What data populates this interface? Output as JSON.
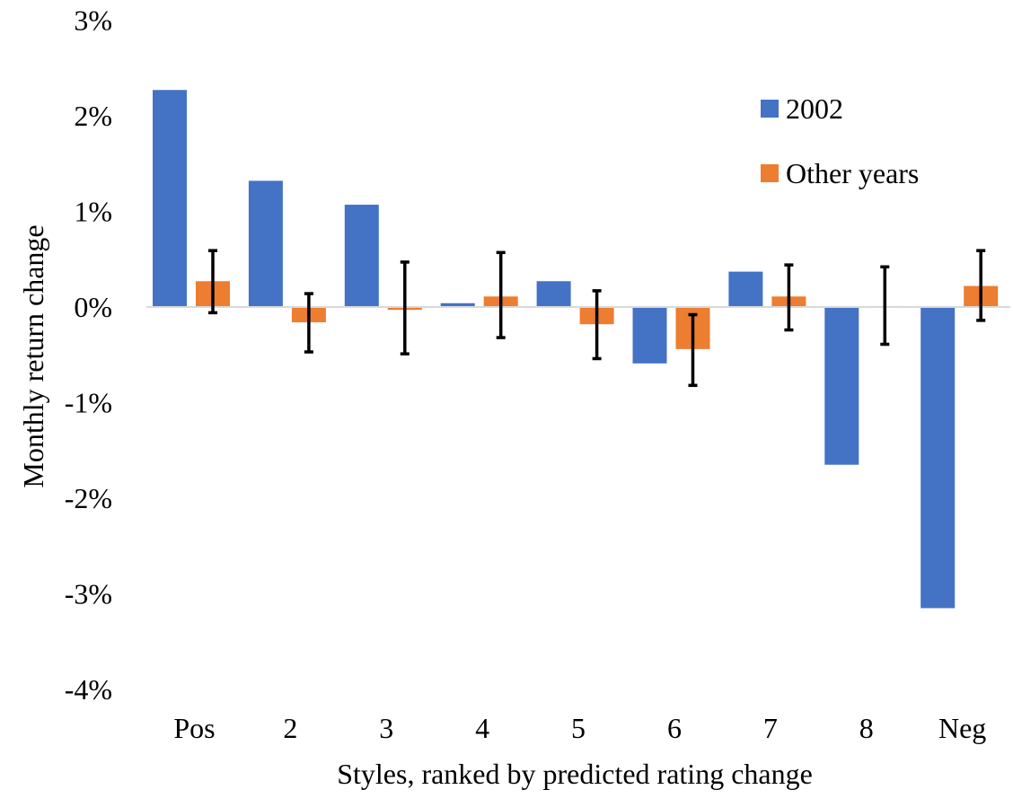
{
  "chart_data": {
    "type": "bar",
    "xlabel": "Styles, ranked by predicted rating change",
    "ylabel": "Monthly return change",
    "ylim": [
      -4,
      3
    ],
    "yticks": [
      3,
      2,
      1,
      0,
      -1,
      -2,
      -3,
      -4
    ],
    "ytick_labels": [
      "3%",
      "2%",
      "1%",
      "0%",
      "-1%",
      "-2%",
      "-3%",
      "-4%"
    ],
    "categories": [
      "Pos",
      "2",
      "3",
      "4",
      "5",
      "6",
      "7",
      "8",
      "Neg"
    ],
    "series": [
      {
        "name": "2002",
        "color": "#4472C4",
        "values": [
          2.27,
          1.32,
          1.07,
          0.04,
          0.27,
          -0.59,
          0.37,
          -1.65,
          -3.15
        ]
      },
      {
        "name": "Other years",
        "color": "#ED7D31",
        "values": [
          0.27,
          -0.16,
          -0.03,
          0.11,
          -0.18,
          -0.44,
          0.11,
          0.01,
          0.22
        ],
        "error_low": [
          -0.06,
          -0.47,
          -0.49,
          -0.32,
          -0.54,
          -0.82,
          -0.24,
          -0.39,
          -0.14
        ],
        "error_high": [
          0.59,
          0.14,
          0.47,
          0.57,
          0.17,
          -0.08,
          0.44,
          0.42,
          0.59
        ]
      }
    ],
    "legend_position": "top-right",
    "grid": false
  }
}
